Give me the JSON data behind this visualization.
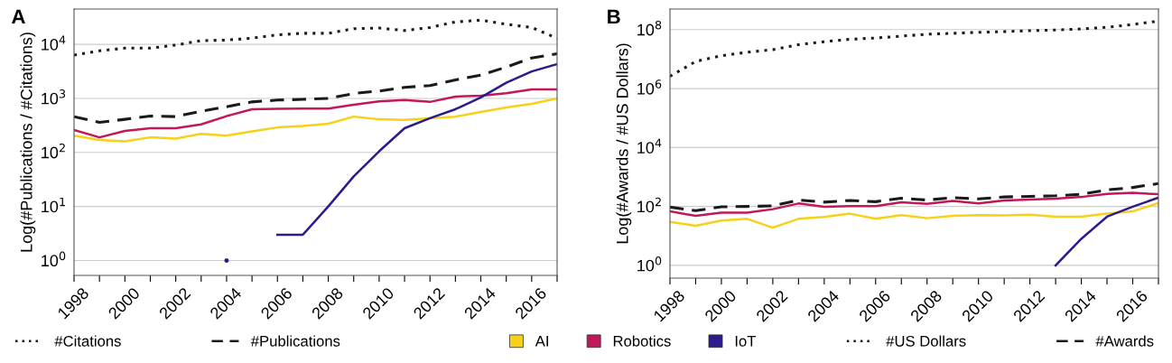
{
  "chart_data": [
    {
      "type": "line",
      "title": "A",
      "ylabel": "Log(#Publications / #Citations)",
      "log": true,
      "grid": "y",
      "legend": "bottom",
      "x": [
        1998,
        1999,
        2000,
        2001,
        2002,
        2003,
        2004,
        2005,
        2006,
        2007,
        2008,
        2009,
        2010,
        2011,
        2012,
        2013,
        2014,
        2015,
        2016,
        2017
      ],
      "xlim": [
        1998,
        2017
      ],
      "ylim": [
        0.53,
        45000
      ],
      "xticks": [
        1998,
        {
          "value": 1999,
          "label": null
        },
        2000,
        {
          "value": 2001,
          "label": null
        },
        2002,
        {
          "value": 2003,
          "label": null
        },
        2004,
        {
          "value": 2005,
          "label": null
        },
        2006,
        {
          "value": 2007,
          "label": null
        },
        2008,
        {
          "value": 2009,
          "label": null
        },
        2010,
        {
          "value": 2011,
          "label": null
        },
        2012,
        {
          "value": 2013,
          "label": null
        },
        2014,
        {
          "value": 2015,
          "label": null
        },
        2016,
        {
          "value": 2017,
          "label": null
        }
      ],
      "yticks": [
        {
          "value": 1,
          "label": "10$^{0}$"
        },
        {
          "value": 10,
          "label": "10$^{1}$"
        },
        {
          "value": 100,
          "label": "10$^{2}$"
        },
        {
          "value": 1000,
          "label": "10$^{3}$"
        },
        {
          "value": 10000,
          "label": "10$^{4}$"
        }
      ],
      "series": [
        {
          "name": "#Citations",
          "color": "#1a1a1a",
          "line_style": "dotted",
          "values": [
            6300,
            7600,
            8500,
            8500,
            9700,
            11700,
            12000,
            13000,
            15000,
            16000,
            16000,
            19500,
            20000,
            18000,
            20500,
            26000,
            28000,
            23500,
            20500,
            13000
          ]
        },
        {
          "name": "#Publications",
          "color": "#1a1a1a",
          "line_style": "dashed",
          "values": [
            460,
            360,
            410,
            470,
            460,
            580,
            700,
            860,
            930,
            960,
            1000,
            1230,
            1370,
            1600,
            1730,
            2200,
            2700,
            3800,
            5600,
            6700
          ]
        },
        {
          "name": "AI",
          "color": "#f7d117",
          "line_style": "solid",
          "values": [
            205,
            170,
            160,
            190,
            180,
            220,
            205,
            245,
            290,
            310,
            340,
            460,
            410,
            400,
            430,
            460,
            560,
            680,
            790,
            1000
          ]
        },
        {
          "name": "Robotics",
          "color": "#c2185b",
          "line_style": "solid",
          "values": [
            260,
            190,
            250,
            280,
            280,
            330,
            470,
            630,
            640,
            650,
            650,
            760,
            880,
            930,
            860,
            1080,
            1120,
            1250,
            1470,
            1470
          ]
        },
        {
          "name": "IoT",
          "color": "#2b1b8c",
          "line_style": "solid",
          "values": [
            null,
            null,
            null,
            null,
            null,
            null,
            1,
            null,
            3,
            3,
            10,
            36,
            105,
            280,
            430,
            630,
            1040,
            1950,
            3150,
            4300
          ]
        }
      ]
    },
    {
      "type": "line",
      "title": "B",
      "ylabel": "Log(#Awards / #US Dollars)",
      "log": true,
      "grid": "y",
      "legend": "bottom",
      "x": [
        1998,
        1999,
        2000,
        2001,
        2002,
        2003,
        2004,
        2005,
        2006,
        2007,
        2008,
        2009,
        2010,
        2011,
        2012,
        2013,
        2014,
        2015,
        2016,
        2017
      ],
      "xlim": [
        1998,
        2017
      ],
      "ylim": [
        0.37,
        500000000
      ],
      "xticks": [
        1998,
        {
          "value": 1999,
          "label": null
        },
        2000,
        {
          "value": 2001,
          "label": null
        },
        2002,
        {
          "value": 2003,
          "label": null
        },
        2004,
        {
          "value": 2005,
          "label": null
        },
        2006,
        {
          "value": 2007,
          "label": null
        },
        2008,
        {
          "value": 2009,
          "label": null
        },
        2010,
        {
          "value": 2011,
          "label": null
        },
        2012,
        {
          "value": 2013,
          "label": null
        },
        2014,
        {
          "value": 2015,
          "label": null
        },
        2016,
        {
          "value": 2017,
          "label": null
        }
      ],
      "yticks": [
        {
          "value": 1,
          "label": "10$^{0}$"
        },
        {
          "value": 100,
          "label": "10$^{2}$"
        },
        {
          "value": 10000,
          "label": "10$^{4}$"
        },
        {
          "value": 1000000,
          "label": "10$^{6}$"
        },
        {
          "value": 100000000,
          "label": "10$^{8}$"
        }
      ],
      "series": [
        {
          "name": "#US Dollars",
          "color": "#1a1a1a",
          "line_style": "dotted",
          "values": [
            2600000,
            8300000,
            13000000,
            17000000,
            21000000,
            31000000,
            39000000,
            47000000,
            52000000,
            60000000,
            70000000,
            75000000,
            81000000,
            86000000,
            92000000,
            97000000,
            106000000,
            120000000,
            150000000,
            195000000
          ]
        },
        {
          "name": "#Awards",
          "color": "#1a1a1a",
          "line_style": "dashed",
          "values": [
            95,
            72,
            97,
            100,
            105,
            165,
            140,
            160,
            145,
            190,
            165,
            200,
            180,
            210,
            220,
            230,
            260,
            365,
            440,
            600
          ]
        },
        {
          "name": "AI",
          "color": "#f7d117",
          "line_style": "solid",
          "values": [
            30,
            22,
            33,
            38,
            19,
            38,
            44,
            57,
            38,
            51,
            40,
            48,
            51,
            50,
            53,
            45,
            45,
            57,
            68,
            130
          ]
        },
        {
          "name": "Robotics",
          "color": "#c2185b",
          "line_style": "solid",
          "values": [
            68,
            48,
            62,
            62,
            81,
            126,
            97,
            103,
            103,
            138,
            123,
            155,
            126,
            160,
            170,
            185,
            210,
            265,
            290,
            260
          ]
        },
        {
          "name": "IoT",
          "color": "#2b1b8c",
          "line_style": "solid",
          "values": [
            null,
            null,
            null,
            null,
            null,
            null,
            null,
            null,
            null,
            null,
            null,
            null,
            null,
            null,
            null,
            1,
            8,
            45,
            98,
            200
          ]
        }
      ]
    }
  ]
}
